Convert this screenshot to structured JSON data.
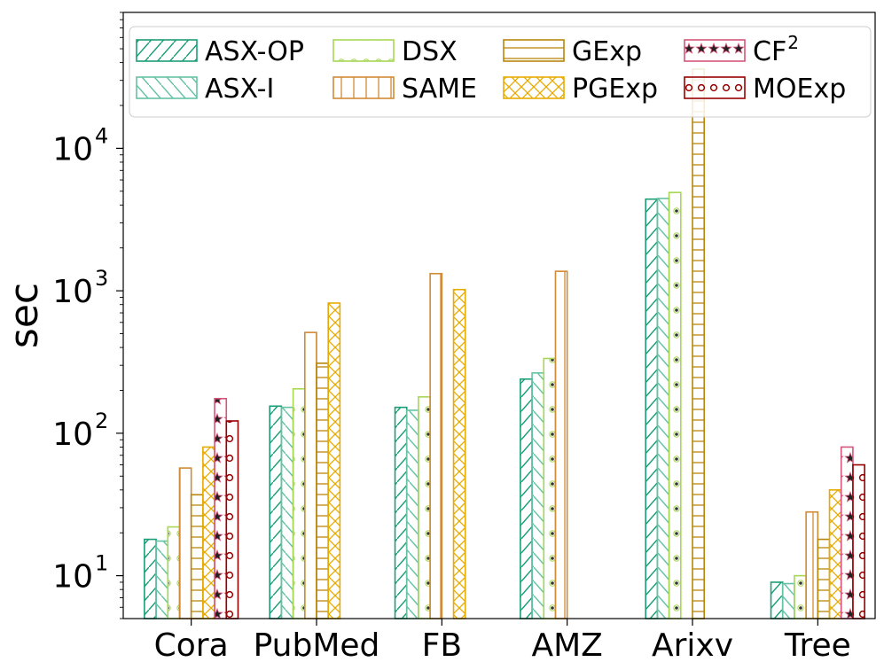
{
  "chart_data": {
    "type": "bar",
    "title": "",
    "xlabel": "",
    "ylabel": "sec",
    "yscale": "log",
    "ylim": [
      5,
      90000
    ],
    "yticks": [
      {
        "value": 10,
        "base": "10",
        "exp": "1"
      },
      {
        "value": 100,
        "base": "10",
        "exp": "2"
      },
      {
        "value": 1000,
        "base": "10",
        "exp": "3"
      },
      {
        "value": 10000,
        "base": "10",
        "exp": "4"
      }
    ],
    "categories": [
      "Cora",
      "PubMed",
      "FB",
      "AMZ",
      "Arixv",
      "Tree"
    ],
    "legend_position": "top",
    "series": [
      {
        "name": "ASX-OP",
        "name_sup": "",
        "color": "#1b9e77",
        "hatch": "slash",
        "values": [
          18,
          155,
          152,
          240,
          4400,
          9
        ]
      },
      {
        "name": "ASX-I",
        "name_sup": "",
        "color": "#66c2a5",
        "hatch": "backslash",
        "values": [
          17.5,
          152,
          145,
          265,
          4450,
          8.8
        ]
      },
      {
        "name": "DSX",
        "name_sup": "",
        "color": "#a6d854",
        "hatch": "dots",
        "values": [
          22,
          205,
          180,
          335,
          4900,
          10
        ]
      },
      {
        "name": "SAME",
        "name_sup": "",
        "color": "#d18a36",
        "hatch": "vlines",
        "values": [
          57,
          510,
          1320,
          1370,
          null,
          28
        ]
      },
      {
        "name": "GExp",
        "name_sup": "",
        "color": "#b8860b",
        "hatch": "hlines",
        "values": [
          37,
          310,
          null,
          null,
          36000,
          18
        ]
      },
      {
        "name": "PGExp",
        "name_sup": "",
        "color": "#e6ab02",
        "hatch": "cross",
        "values": [
          80,
          820,
          1020,
          null,
          null,
          40
        ]
      },
      {
        "name": "CF",
        "name_sup": "2",
        "color": "#d6557a",
        "hatch": "stars",
        "values": [
          175,
          null,
          null,
          null,
          null,
          80
        ]
      },
      {
        "name": "MOExp",
        "name_sup": "",
        "color": "#990000",
        "hatch": "circles",
        "values": [
          122,
          null,
          null,
          null,
          null,
          60
        ]
      }
    ]
  }
}
